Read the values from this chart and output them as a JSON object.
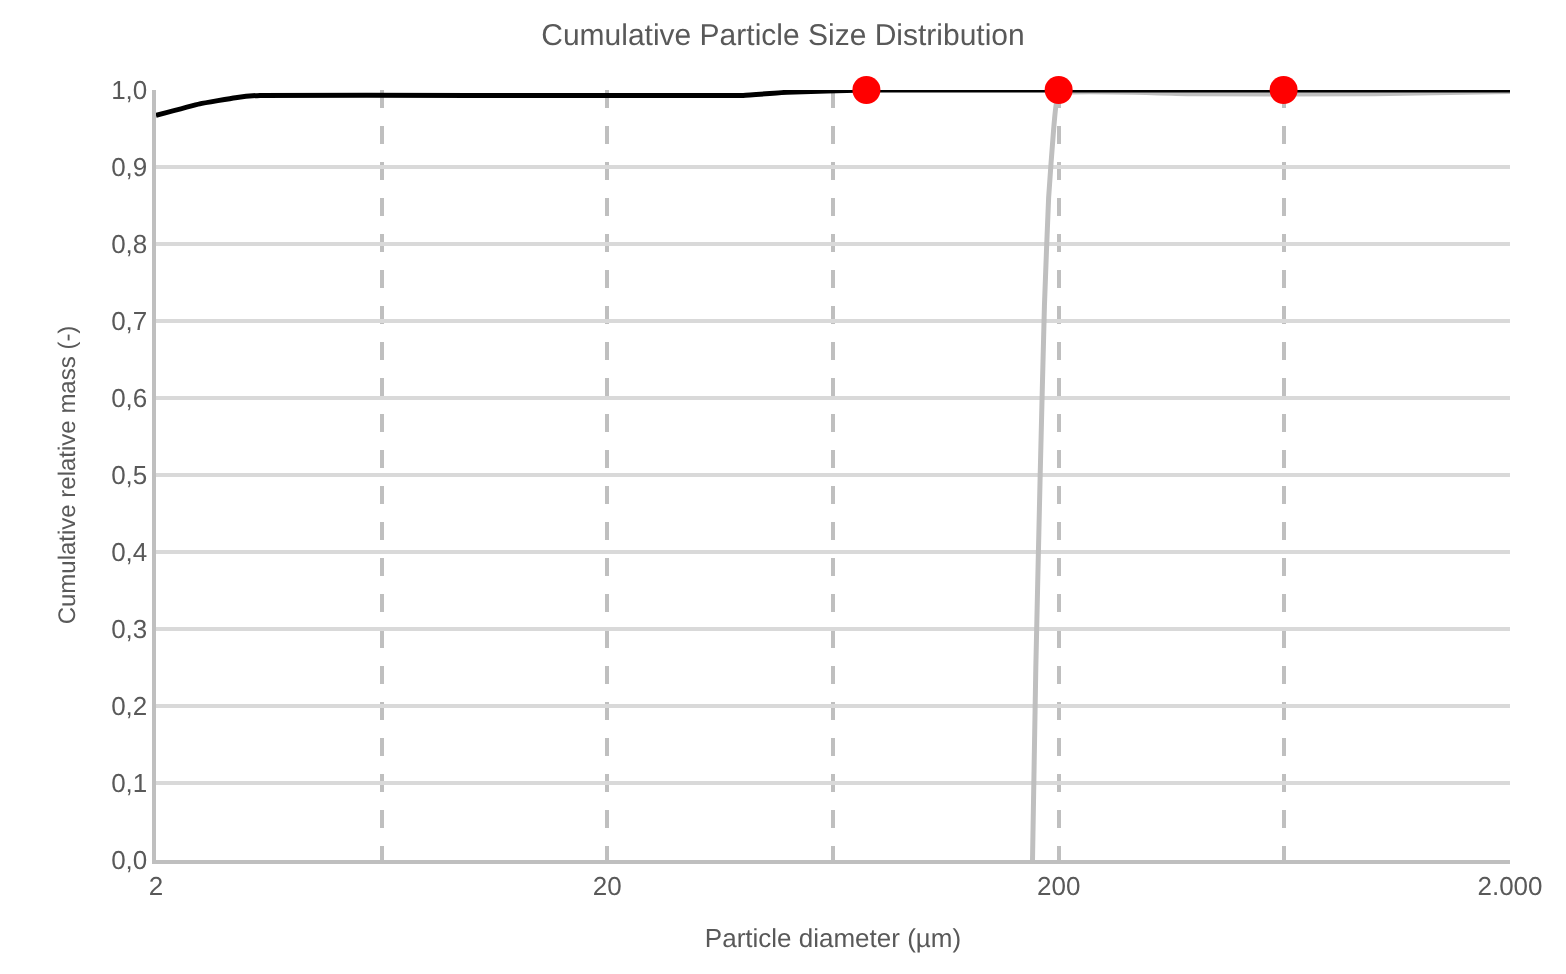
{
  "chart_data": {
    "type": "line",
    "title": "Cumulative Particle Size Distribution",
    "xlabel": "Particle diameter (µm)",
    "ylabel": "Cumulative relative mass (-)",
    "log": "x",
    "grid": true,
    "xlim": [
      2,
      2000
    ],
    "xticks": [
      2,
      {
        "value": 6.32,
        "label": null
      },
      20,
      {
        "value": 63.2,
        "label": null
      },
      200,
      {
        "value": 632,
        "label": null
      },
      {
        "value": 2000,
        "label": "2.000"
      }
    ],
    "ylim": [
      0,
      1
    ],
    "yticks": [
      {
        "value": 0,
        "label": "0,0"
      },
      {
        "value": 0.1,
        "label": "0,1"
      },
      {
        "value": 0.2,
        "label": "0,2"
      },
      {
        "value": 0.3,
        "label": "0,3"
      },
      {
        "value": 0.4,
        "label": "0,4"
      },
      {
        "value": 0.5,
        "label": "0,5"
      },
      {
        "value": 0.6,
        "label": "0,6"
      },
      {
        "value": 0.7,
        "label": "0,7"
      },
      {
        "value": 0.8,
        "label": "0,8"
      },
      {
        "value": 0.9,
        "label": "0,9"
      },
      {
        "value": 1,
        "label": "1,0"
      }
    ],
    "series": [
      {
        "color": "#bfbfbf",
        "x": [
          175,
          178,
          182,
          186,
          190,
          195,
          200,
          400,
          1000,
          2000
        ],
        "values": [
          0,
          0.25,
          0.5,
          0.72,
          0.86,
          0.95,
          0.995,
          0.995,
          0.995,
          0.998
        ],
        "marker": "none"
      },
      {
        "color": "#000000",
        "x": [
          2,
          2.5,
          3,
          3.4,
          10,
          40,
          50,
          75,
          200,
          2000
        ],
        "values": [
          0.967,
          0.982,
          0.99,
          0.993,
          0.993,
          0.993,
          0.997,
          1.0,
          1.0,
          1.0
        ],
        "marker": "none"
      },
      {
        "type": "scatter",
        "color": "#ff0000",
        "x": [
          75,
          200,
          630
        ],
        "values": [
          1.0,
          1.0,
          1.0
        ],
        "marker": "circle"
      }
    ]
  }
}
